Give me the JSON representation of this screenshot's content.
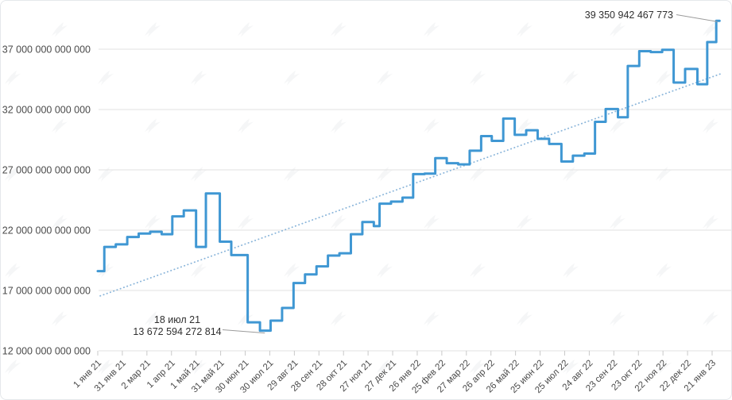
{
  "chart_data": {
    "type": "line",
    "line_style": "step-after",
    "title": "",
    "series_name": "network-difficulty",
    "legend": "none",
    "grid": "horizontal-only",
    "x_axis": {
      "tick_interval_days": 30,
      "tick_labels": [
        "1 янв 21",
        "31 янв 21",
        "2 мар 21",
        "1 апр 21",
        "1 май 21",
        "31 май 21",
        "30 июн 21",
        "30 июл 21",
        "29 авг 21",
        "28 сен 21",
        "28 окт 21",
        "27 ноя 21",
        "27 дек 21",
        "26 янв 22",
        "25 фев 22",
        "27 мар 22",
        "26 апр 22",
        "26 май 22",
        "25 июн 22",
        "25 июл 22",
        "24 авг 22",
        "23 сен 22",
        "23 окт 22",
        "22 ноя 22",
        "22 дек 22",
        "21 янв 23"
      ]
    },
    "y_axis": {
      "tick_labels": [
        "37 000 000 000 000",
        "32 000 000 000 000",
        "27 000 000 000 000",
        "22 000 000 000 000",
        "17 000 000 000 000",
        "12 000 000 000 000"
      ],
      "tick_values": [
        37000000000000,
        32000000000000,
        27000000000000,
        22000000000000,
        17000000000000,
        12000000000000
      ],
      "ylim": [
        12000000000000,
        39500000000000
      ]
    },
    "points": [
      {
        "day": 0,
        "value": 18600000000000
      },
      {
        "day": 8,
        "value": 20607000000000
      },
      {
        "day": 22,
        "value": 20823000000000
      },
      {
        "day": 36,
        "value": 21434000000000
      },
      {
        "day": 50,
        "value": 21724000000000
      },
      {
        "day": 64,
        "value": 21866000000000
      },
      {
        "day": 78,
        "value": 21660000000000
      },
      {
        "day": 91,
        "value": 23140000000000
      },
      {
        "day": 105,
        "value": 23640000000000
      },
      {
        "day": 120,
        "value": 20610000000000
      },
      {
        "day": 132,
        "value": 25046000000000
      },
      {
        "day": 149,
        "value": 21047000000000
      },
      {
        "day": 163,
        "value": 19933000000000
      },
      {
        "day": 183,
        "value": 14363000000000
      },
      {
        "day": 198,
        "value": 13672594272814
      },
      {
        "day": 211,
        "value": 14496000000000
      },
      {
        "day": 225,
        "value": 15556000000000
      },
      {
        "day": 239,
        "value": 17615000000000
      },
      {
        "day": 253,
        "value": 18332000000000
      },
      {
        "day": 267,
        "value": 18998000000000
      },
      {
        "day": 281,
        "value": 19893000000000
      },
      {
        "day": 295,
        "value": 20082000000000
      },
      {
        "day": 309,
        "value": 21659000000000
      },
      {
        "day": 323,
        "value": 22674000000000
      },
      {
        "day": 337,
        "value": 22339000000000
      },
      {
        "day": 344,
        "value": 24195000000000
      },
      {
        "day": 358,
        "value": 24372000000000
      },
      {
        "day": 372,
        "value": 24700000000000
      },
      {
        "day": 385,
        "value": 26643000000000
      },
      {
        "day": 399,
        "value": 26690000000000
      },
      {
        "day": 412,
        "value": 27967000000000
      },
      {
        "day": 426,
        "value": 27550000000000
      },
      {
        "day": 440,
        "value": 27452000000000
      },
      {
        "day": 454,
        "value": 28587000000000
      },
      {
        "day": 468,
        "value": 29794000000000
      },
      {
        "day": 481,
        "value": 29400000000000
      },
      {
        "day": 495,
        "value": 31251000000000
      },
      {
        "day": 509,
        "value": 29900000000000
      },
      {
        "day": 523,
        "value": 30283000000000
      },
      {
        "day": 537,
        "value": 29570000000000
      },
      {
        "day": 551,
        "value": 29150000000000
      },
      {
        "day": 566,
        "value": 27693000000000
      },
      {
        "day": 580,
        "value": 28173000000000
      },
      {
        "day": 594,
        "value": 28351000000000
      },
      {
        "day": 607,
        "value": 30977000000000
      },
      {
        "day": 620,
        "value": 32045000000000
      },
      {
        "day": 635,
        "value": 31360000000000
      },
      {
        "day": 647,
        "value": 35607000000000
      },
      {
        "day": 661,
        "value": 36839000000000
      },
      {
        "day": 675,
        "value": 36761000000000
      },
      {
        "day": 689,
        "value": 36950000000000
      },
      {
        "day": 703,
        "value": 34240000000000
      },
      {
        "day": 717,
        "value": 35364000000000
      },
      {
        "day": 732,
        "value": 34093000000000
      },
      {
        "day": 744,
        "value": 37590000000000
      },
      {
        "day": 755,
        "value": 39350942467773
      }
    ],
    "end_day": 759,
    "trend_line": {
      "style": "dotted",
      "start": {
        "day": 3,
        "value": 16550000000000
      },
      "end": {
        "day": 760,
        "value": 34950000000000
      }
    },
    "annotations": [
      {
        "id": "min",
        "lines": [
          "18 июл 21",
          "13 672 594 272 814"
        ],
        "target_day": 204,
        "target_value": 13672594272814
      },
      {
        "id": "max",
        "lines": [
          "39 350 942 467 773"
        ],
        "target_day": 755,
        "target_value": 39350942467773
      }
    ],
    "colors": {
      "series": "#3f97d3",
      "trend": "#8ab5da",
      "grid": "#e1e1e1",
      "tick": "#c9c9c9",
      "axis_text": "#4a4a4a",
      "annotation_text": "#2f2f2f",
      "leader": "#9b9b9b",
      "watermark": "#aeb6bf",
      "background": "#ffffff",
      "border": "#e5e8eb"
    }
  }
}
